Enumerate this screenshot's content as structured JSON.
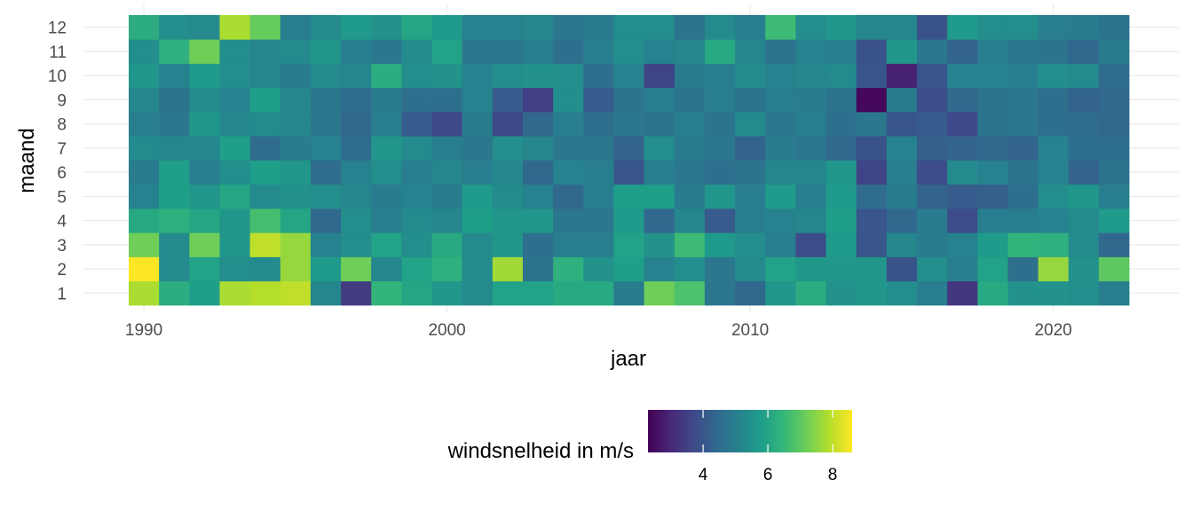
{
  "chart_data": {
    "type": "heatmap",
    "xlabel": "jaar",
    "ylabel": "maand",
    "x_range": [
      1989.5,
      2022.5
    ],
    "x_ticks": [
      1990,
      2000,
      2010,
      2020
    ],
    "y_ticks": [
      1,
      2,
      3,
      4,
      5,
      6,
      7,
      8,
      9,
      10,
      11,
      12
    ],
    "x_years": [
      1990,
      1991,
      1992,
      1993,
      1994,
      1995,
      1996,
      1997,
      1998,
      1999,
      2000,
      2001,
      2002,
      2003,
      2004,
      2005,
      2006,
      2007,
      2008,
      2009,
      2010,
      2011,
      2012,
      2013,
      2014,
      2015,
      2016,
      2017,
      2018,
      2019,
      2020,
      2021,
      2022
    ],
    "y_months": [
      1,
      2,
      3,
      4,
      5,
      6,
      7,
      8,
      9,
      10,
      11,
      12
    ],
    "values_by_month": {
      "1": [
        7.8,
        6.2,
        5.8,
        7.8,
        7.9,
        8.0,
        5.2,
        3.4,
        6.4,
        6.0,
        5.6,
        5.3,
        5.9,
        5.9,
        6.1,
        6.1,
        4.9,
        7.2,
        6.8,
        4.8,
        4.4,
        5.6,
        6.2,
        5.5,
        5.6,
        5.4,
        5.0,
        3.3,
        6.1,
        5.5,
        5.5,
        5.4,
        5.0
      ],
      "2": [
        8.6,
        5.3,
        5.9,
        5.4,
        5.3,
        7.6,
        5.7,
        7.2,
        5.2,
        5.9,
        6.3,
        5.3,
        7.7,
        4.7,
        6.3,
        5.5,
        5.8,
        5.1,
        5.4,
        4.8,
        5.3,
        5.9,
        5.6,
        5.6,
        5.6,
        3.9,
        5.4,
        5.0,
        5.9,
        4.6,
        7.6,
        5.5,
        7.0
      ],
      "3": [
        7.2,
        5.3,
        7.2,
        5.6,
        8.0,
        7.6,
        5.1,
        5.4,
        5.9,
        5.4,
        6.1,
        5.3,
        5.6,
        4.6,
        5.0,
        5.0,
        5.9,
        5.5,
        6.6,
        5.7,
        5.4,
        5.0,
        3.8,
        5.7,
        4.0,
        5.2,
        4.9,
        5.1,
        5.7,
        6.4,
        6.3,
        5.3,
        4.4
      ],
      "4": [
        6.1,
        6.3,
        6.0,
        5.6,
        6.7,
        6.0,
        4.4,
        5.4,
        5.0,
        5.3,
        5.2,
        5.8,
        5.6,
        5.6,
        4.8,
        4.8,
        5.7,
        4.4,
        5.2,
        4.1,
        5.0,
        5.1,
        5.2,
        5.8,
        4.0,
        4.4,
        4.9,
        3.8,
        5.0,
        5.0,
        5.1,
        5.3,
        5.7
      ],
      "5": [
        5.1,
        5.8,
        5.6,
        6.0,
        5.3,
        5.5,
        5.4,
        5.2,
        4.9,
        5.1,
        4.9,
        5.7,
        5.3,
        5.1,
        4.4,
        5.0,
        5.8,
        5.8,
        4.9,
        5.6,
        5.0,
        5.7,
        5.0,
        5.7,
        4.5,
        4.9,
        4.3,
        4.1,
        4.2,
        4.6,
        5.4,
        5.6,
        5.0
      ],
      "6": [
        4.9,
        5.8,
        5.0,
        5.4,
        5.8,
        5.6,
        4.5,
        5.1,
        5.4,
        5.0,
        5.2,
        5.0,
        5.2,
        4.4,
        5.1,
        5.0,
        4.0,
        5.0,
        4.8,
        4.6,
        4.7,
        5.2,
        5.2,
        5.6,
        3.6,
        5.0,
        3.8,
        5.3,
        5.1,
        4.7,
        5.1,
        4.3,
        4.7
      ],
      "7": [
        5.3,
        5.2,
        5.2,
        5.8,
        4.5,
        4.9,
        5.1,
        4.5,
        5.6,
        5.3,
        5.0,
        4.8,
        5.4,
        5.2,
        4.8,
        4.8,
        4.3,
        5.4,
        4.9,
        4.8,
        4.3,
        4.9,
        4.8,
        4.4,
        3.9,
        5.1,
        4.2,
        4.3,
        4.4,
        4.3,
        5.1,
        4.6,
        4.6
      ],
      "8": [
        5.0,
        4.8,
        5.6,
        5.2,
        5.3,
        5.2,
        4.8,
        4.4,
        5.0,
        4.1,
        3.7,
        4.9,
        3.7,
        4.4,
        5.0,
        4.6,
        4.8,
        4.7,
        5.0,
        4.7,
        5.3,
        4.8,
        5.0,
        4.6,
        4.8,
        4.0,
        4.1,
        3.7,
        4.7,
        4.8,
        4.6,
        4.5,
        4.4
      ],
      "9": [
        5.2,
        4.7,
        5.3,
        5.1,
        5.8,
        5.2,
        4.8,
        4.5,
        4.9,
        4.6,
        4.6,
        5.1,
        4.1,
        3.5,
        5.4,
        4.1,
        4.7,
        5.0,
        4.7,
        5.0,
        4.7,
        5.0,
        4.9,
        4.7,
        2.4,
        4.9,
        3.8,
        4.4,
        4.7,
        4.8,
        4.6,
        4.3,
        4.4
      ],
      "10": [
        5.6,
        5.1,
        5.7,
        5.4,
        5.2,
        4.9,
        5.3,
        5.2,
        6.2,
        5.4,
        5.5,
        5.1,
        5.4,
        5.5,
        5.4,
        4.6,
        5.1,
        3.6,
        4.9,
        5.0,
        5.3,
        5.1,
        5.2,
        5.3,
        4.0,
        2.9,
        4.0,
        5.1,
        5.1,
        5.0,
        5.4,
        5.3,
        4.5
      ],
      "11": [
        5.4,
        6.3,
        7.2,
        5.4,
        5.2,
        5.3,
        5.6,
        5.0,
        4.8,
        5.3,
        5.9,
        4.8,
        4.8,
        5.0,
        4.6,
        5.0,
        5.4,
        5.1,
        5.2,
        6.1,
        5.2,
        4.7,
        5.1,
        5.0,
        3.9,
        5.6,
        4.8,
        4.3,
        5.0,
        4.8,
        4.7,
        4.4,
        4.9
      ],
      "12": [
        6.2,
        5.4,
        5.3,
        7.8,
        7.1,
        5.0,
        5.3,
        5.7,
        5.5,
        6.0,
        5.7,
        5.1,
        5.1,
        5.2,
        4.8,
        4.9,
        5.4,
        5.4,
        4.7,
        5.3,
        5.0,
        6.6,
        5.4,
        5.6,
        5.2,
        5.2,
        3.9,
        5.7,
        5.4,
        5.4,
        5.0,
        4.9,
        4.7
      ]
    },
    "legend": {
      "title": "windsnelheid in m/s",
      "position": "bottom",
      "range": [
        2.3,
        8.6
      ],
      "ticks": [
        4,
        6,
        8
      ],
      "colorscale": [
        "#440154",
        "#482878",
        "#3e4989",
        "#31688e",
        "#26828e",
        "#1f9e89",
        "#35b779",
        "#6ece58",
        "#b5de2b",
        "#fde725"
      ]
    },
    "grid": true,
    "background": "#ffffff",
    "gridline_color": "#ebebeb"
  }
}
